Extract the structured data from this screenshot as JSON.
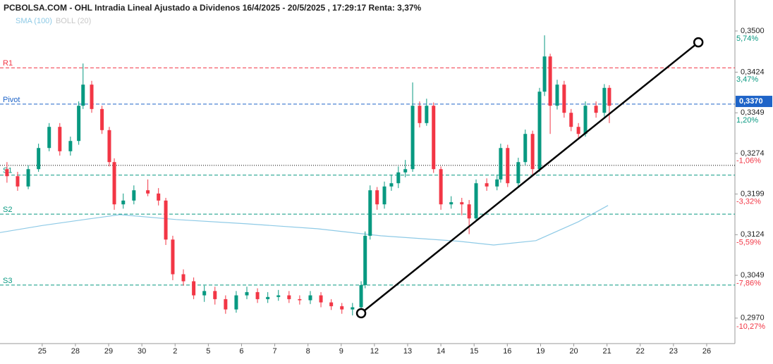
{
  "chart_data": {
    "type": "candlestick",
    "title": "PCBOLSA.COM - OHL Intradia Lineal Ajustado a Dividenos 16/4/2025 - 20/5/2025 , 17:29:17 Renta: 3,37%",
    "indicators": [
      {
        "name": "SMA (100)",
        "color": "#8ecae6"
      },
      {
        "name": "BOLL (20)",
        "color": "#c8c8c8"
      }
    ],
    "categories": [
      "25",
      "28",
      "29",
      "30",
      "2",
      "5",
      "6",
      "7",
      "8",
      "9",
      "12",
      "13",
      "14",
      "15",
      "16",
      "19",
      "20",
      "21",
      "22",
      "23",
      "26"
    ],
    "xlim": [
      -1.27,
      20.85
    ],
    "ylim": [
      0.2923,
      0.3539
    ],
    "yticks": [
      {
        "value": 0.35,
        "label": "0,3500"
      },
      {
        "value": 0.3424,
        "label": "0,3424"
      },
      {
        "value": 0.3349,
        "label": "0,3349"
      },
      {
        "value": 0.3274,
        "label": "0,3274"
      },
      {
        "value": 0.3199,
        "label": "0,3199"
      },
      {
        "value": 0.3124,
        "label": "0,3124"
      },
      {
        "value": 0.3049,
        "label": "0,3049"
      },
      {
        "value": 0.297,
        "label": "0,2970"
      }
    ],
    "y2lim": [
      -11.21,
      7.35
    ],
    "y2ticks": [
      {
        "value": 5.74,
        "label": "5,74%"
      },
      {
        "value": 3.47,
        "label": "3,47%"
      },
      {
        "value": 1.2,
        "label": "1,20%"
      },
      {
        "value": -1.06,
        "label": "-1,06%"
      },
      {
        "value": -3.32,
        "label": "-3,32%"
      },
      {
        "value": -5.59,
        "label": "-5,59%"
      },
      {
        "value": -7.86,
        "label": "-7,86%"
      },
      {
        "value": -10.27,
        "label": "-10,27%"
      }
    ],
    "last_price": {
      "value": 0.337,
      "label": "0,3370",
      "color": "#1e64c8"
    },
    "levels": [
      {
        "name": "R1",
        "value": 0.3432,
        "color": "#f23645"
      },
      {
        "name": "Pivot",
        "value": 0.3365,
        "color": "#1e64c8"
      },
      {
        "value": 0.3252,
        "color": "#000000"
      },
      {
        "name": "S1",
        "value": 0.3234,
        "color": "#089981"
      },
      {
        "name": "S2",
        "value": 0.3162,
        "color": "#089981"
      },
      {
        "name": "S3",
        "value": 0.3031,
        "color": "#089981"
      }
    ],
    "up_color": "#089981",
    "down_color": "#f23645",
    "candles": {
      "x": [
        -1.06,
        -0.74,
        -0.42,
        -0.11,
        0.21,
        0.53,
        0.85,
        1.1,
        1.23,
        1.49,
        1.8,
        2.02,
        2.17,
        2.44,
        2.76,
        3.18,
        3.5,
        3.72,
        3.93,
        4.25,
        4.56,
        4.88,
        5.2,
        5.52,
        5.84,
        6.16,
        6.48,
        6.79,
        7.11,
        7.43,
        7.75,
        8.07,
        8.39,
        8.7,
        9.02,
        9.34,
        9.6,
        9.72,
        9.87,
        10.08,
        10.3,
        10.51,
        10.72,
        10.93,
        11.15,
        11.36,
        11.57,
        11.78,
        12.0,
        12.31,
        12.63,
        12.85,
        13.06,
        13.38,
        13.69,
        13.8,
        14.01,
        14.33,
        14.54,
        14.76,
        14.97,
        15.12,
        15.29,
        15.5,
        15.71,
        15.92,
        16.14,
        16.35,
        16.67,
        16.92,
        17.07
      ],
      "open": [
        0.3245,
        0.3232,
        0.3213,
        0.3245,
        0.3284,
        0.3323,
        0.3278,
        0.3297,
        0.3362,
        0.3401,
        0.3356,
        0.3317,
        0.3258,
        0.318,
        0.3187,
        0.3206,
        0.32,
        0.3187,
        0.3115,
        0.3051,
        0.3038,
        0.3012,
        0.302,
        0.3005,
        0.2986,
        0.3012,
        0.3018,
        0.3005,
        0.3009,
        0.3012,
        0.3005,
        0.3003,
        0.3012,
        0.2999,
        0.2992,
        0.2986,
        0.299,
        0.3031,
        0.3122,
        0.3206,
        0.318,
        0.3213,
        0.3219,
        0.3239,
        0.3245,
        0.3362,
        0.333,
        0.3362,
        0.3245,
        0.318,
        0.3184,
        0.318,
        0.3154,
        0.3219,
        0.3213,
        0.3226,
        0.3284,
        0.3219,
        0.3258,
        0.331,
        0.3245,
        0.3388,
        0.3453,
        0.3362,
        0.3401,
        0.3349,
        0.3323,
        0.331,
        0.3362,
        0.3349,
        0.3395
      ],
      "high": [
        0.3258,
        0.324,
        0.3252,
        0.3292,
        0.333,
        0.333,
        0.3305,
        0.337,
        0.344,
        0.3408,
        0.3362,
        0.3323,
        0.3265,
        0.32,
        0.3215,
        0.3226,
        0.321,
        0.3192,
        0.3122,
        0.306,
        0.3045,
        0.303,
        0.3028,
        0.3012,
        0.302,
        0.3028,
        0.3025,
        0.3018,
        0.3022,
        0.302,
        0.3012,
        0.302,
        0.3018,
        0.3005,
        0.2998,
        0.2998,
        0.3038,
        0.313,
        0.3215,
        0.3212,
        0.3222,
        0.3235,
        0.325,
        0.3262,
        0.3405,
        0.337,
        0.3375,
        0.3368,
        0.325,
        0.3195,
        0.3192,
        0.3188,
        0.3226,
        0.3228,
        0.3235,
        0.3292,
        0.329,
        0.3266,
        0.3318,
        0.3316,
        0.3395,
        0.3492,
        0.3458,
        0.341,
        0.3408,
        0.3356,
        0.333,
        0.337,
        0.337,
        0.3402,
        0.34
      ],
      "low": [
        0.322,
        0.3205,
        0.3208,
        0.324,
        0.3278,
        0.327,
        0.327,
        0.329,
        0.3356,
        0.3349,
        0.331,
        0.325,
        0.317,
        0.3172,
        0.318,
        0.3195,
        0.3178,
        0.3105,
        0.304,
        0.303,
        0.3005,
        0.3,
        0.2995,
        0.2978,
        0.298,
        0.3005,
        0.2998,
        0.2998,
        0.3002,
        0.2998,
        0.2995,
        0.2996,
        0.299,
        0.2985,
        0.2978,
        0.2975,
        0.2975,
        0.3025,
        0.3115,
        0.317,
        0.3172,
        0.3205,
        0.321,
        0.323,
        0.324,
        0.3322,
        0.3325,
        0.3238,
        0.317,
        0.3172,
        0.316,
        0.3125,
        0.3148,
        0.3205,
        0.3206,
        0.322,
        0.3212,
        0.3212,
        0.3252,
        0.3232,
        0.324,
        0.338,
        0.331,
        0.3355,
        0.334,
        0.3315,
        0.33,
        0.3305,
        0.334,
        0.3342,
        0.333
      ],
      "close": [
        0.3232,
        0.3213,
        0.3245,
        0.3284,
        0.3323,
        0.3278,
        0.3297,
        0.3362,
        0.3401,
        0.3356,
        0.3317,
        0.3258,
        0.318,
        0.3187,
        0.3206,
        0.32,
        0.3187,
        0.3115,
        0.3051,
        0.3038,
        0.3012,
        0.302,
        0.3005,
        0.2986,
        0.3012,
        0.3018,
        0.3005,
        0.3009,
        0.3012,
        0.3005,
        0.3003,
        0.3012,
        0.2999,
        0.2992,
        0.2986,
        0.299,
        0.3031,
        0.3122,
        0.3206,
        0.318,
        0.3213,
        0.3219,
        0.3239,
        0.3245,
        0.3362,
        0.333,
        0.3362,
        0.3245,
        0.318,
        0.3184,
        0.318,
        0.3154,
        0.3219,
        0.3213,
        0.3226,
        0.3284,
        0.3219,
        0.3258,
        0.331,
        0.3245,
        0.3388,
        0.3453,
        0.3362,
        0.3401,
        0.3349,
        0.3323,
        0.331,
        0.3362,
        0.3349,
        0.3395,
        0.3362
      ]
    },
    "sma": {
      "x": [
        -1.27,
        0,
        1.27,
        2.34,
        4.03,
        6.16,
        8.28,
        10.19,
        12.53,
        13.59,
        14.86,
        16.14,
        17.03
      ],
      "values": [
        0.3128,
        0.3141,
        0.3152,
        0.3161,
        0.3152,
        0.3144,
        0.3135,
        0.3122,
        0.3112,
        0.3105,
        0.3113,
        0.3148,
        0.3178
      ]
    },
    "trend_line": {
      "x": [
        9.6,
        19.75
      ],
      "values": [
        0.2979,
        0.3479
      ],
      "color": "#000000"
    }
  }
}
